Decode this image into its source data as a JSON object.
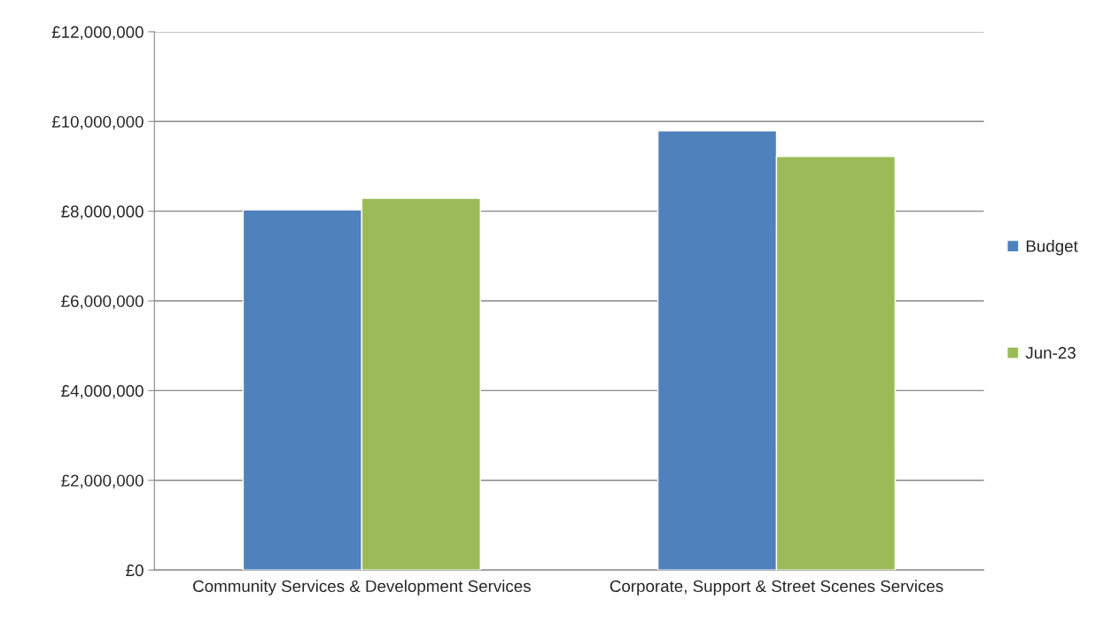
{
  "chart_data": {
    "type": "bar",
    "categories": [
      "Community Services & Development Services",
      "Corporate, Support & Street Scenes Services"
    ],
    "series": [
      {
        "name": "Budget",
        "color": "#4f81bd",
        "values": [
          8030000,
          9790000
        ]
      },
      {
        "name": "Jun-23",
        "color": "#9bbb59",
        "values": [
          8290000,
          9220000
        ]
      }
    ],
    "ylim": [
      0,
      12000000
    ],
    "yticks": [
      {
        "value": 0,
        "label": "£0"
      },
      {
        "value": 2000000,
        "label": "£2,000,000"
      },
      {
        "value": 4000000,
        "label": "£4,000,000"
      },
      {
        "value": 6000000,
        "label": "£6,000,000"
      },
      {
        "value": 8000000,
        "label": "£8,000,000"
      },
      {
        "value": 10000000,
        "label": "£10,000,000"
      },
      {
        "value": 12000000,
        "label": "£12,000,000"
      }
    ],
    "grid": "y",
    "legend": "right"
  }
}
